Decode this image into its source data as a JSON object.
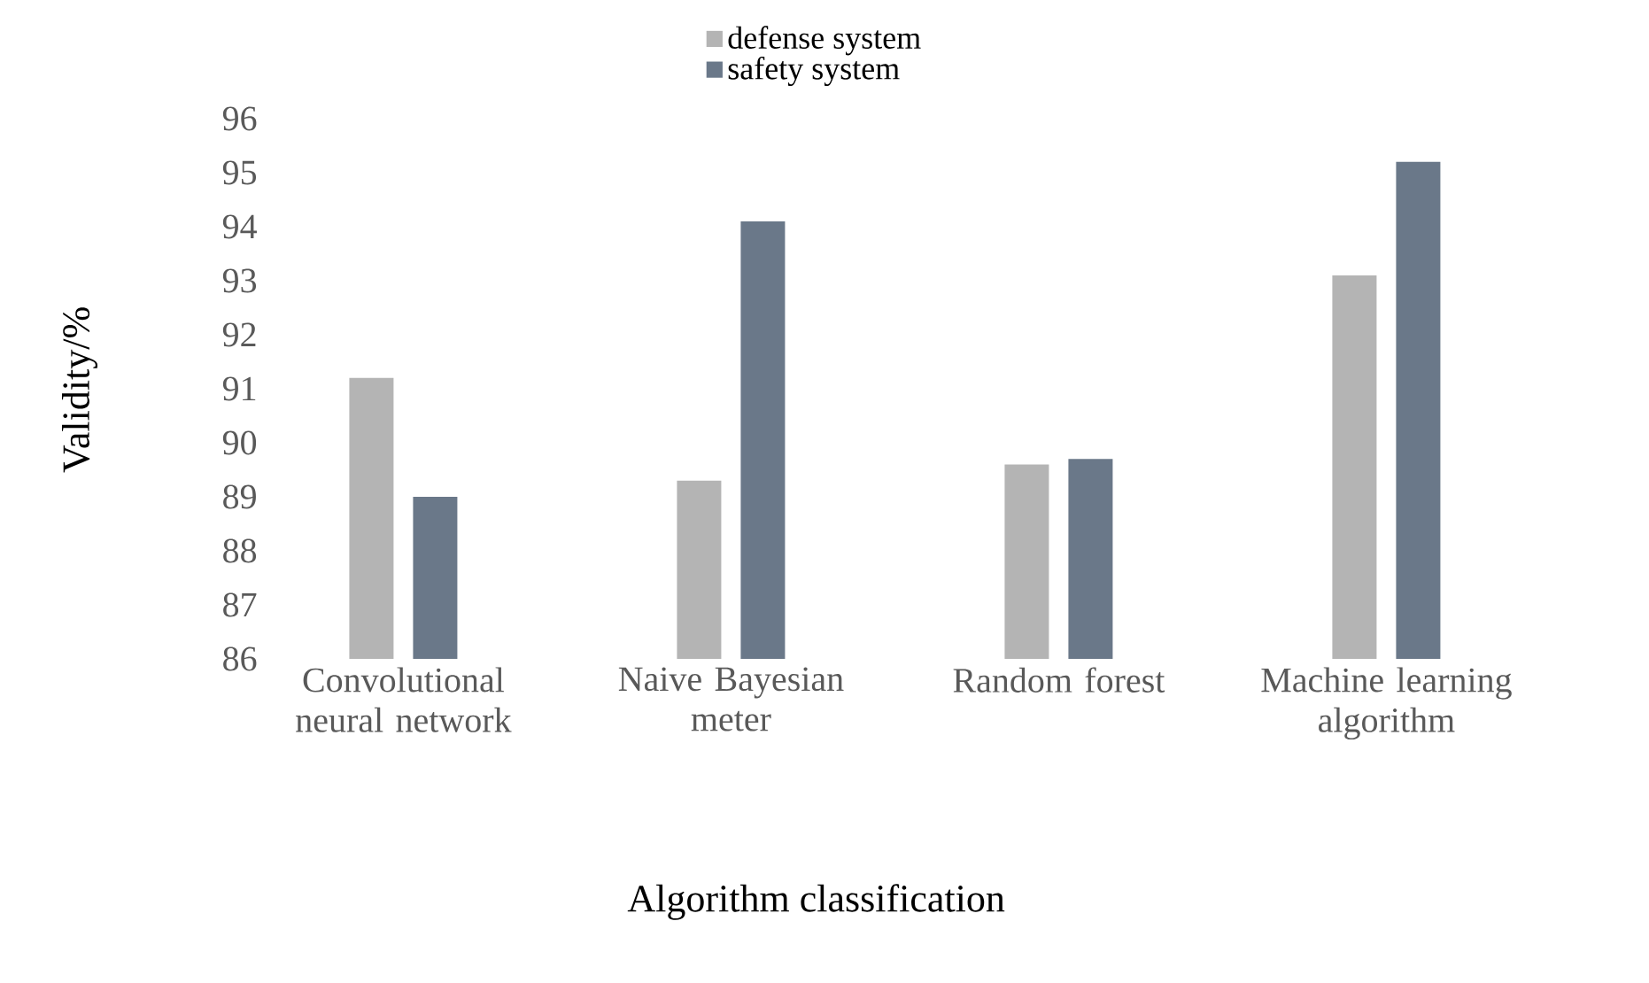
{
  "chart_data": {
    "type": "bar",
    "xlabel": "Algorithm classification",
    "ylabel": "Validity/%",
    "categories": [
      "Convolutional neural network",
      "Naive Bayesian meter",
      "Random forest",
      "Machine learning algorithm"
    ],
    "series": [
      {
        "name": "defense system",
        "color": "#b4b4b4",
        "values": [
          91.2,
          89.3,
          89.6,
          93.1
        ]
      },
      {
        "name": "safety system",
        "color": "#6a7889",
        "values": [
          89.0,
          94.1,
          89.7,
          95.2
        ]
      }
    ],
    "ylim": [
      86,
      96
    ],
    "yticks": [
      86,
      87,
      88,
      89,
      90,
      91,
      92,
      93,
      94,
      95,
      96
    ],
    "grid": false,
    "legend": "top"
  }
}
